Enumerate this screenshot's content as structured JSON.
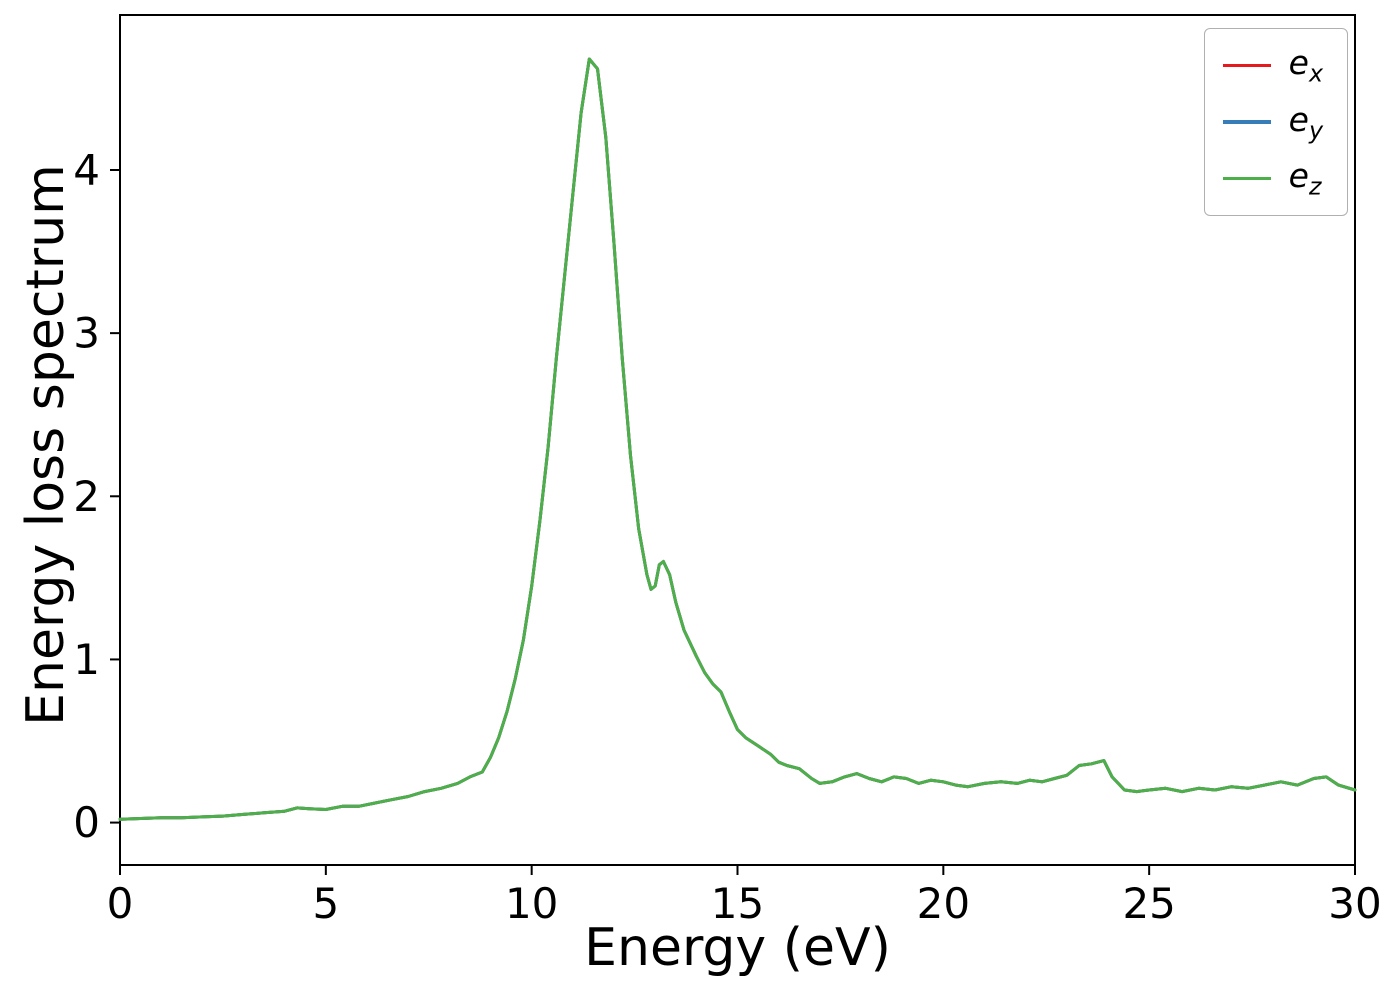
{
  "chart_data": {
    "type": "line",
    "title": "",
    "xlabel": "Energy (eV)",
    "ylabel": "Energy loss spectrum",
    "xlim": [
      0,
      30
    ],
    "ylim": [
      -0.26,
      4.95
    ],
    "xticks": [
      0,
      5,
      10,
      15,
      20,
      25,
      30
    ],
    "yticks": [
      0,
      1,
      2,
      3,
      4
    ],
    "grid": false,
    "legend_position": "upper right",
    "series_note": "The three curves e_x, e_y, e_z are identical and overlap exactly; only e_z (green, drawn last) is visible.",
    "series": [
      {
        "name": "e_x",
        "color": "#e41a1c"
      },
      {
        "name": "e_y",
        "color": "#377eb8"
      },
      {
        "name": "e_z",
        "color": "#4daf4a"
      }
    ],
    "x": [
      0,
      0.5,
      1,
      1.5,
      2,
      2.5,
      3,
      3.5,
      4,
      4.3,
      4.6,
      5,
      5.4,
      5.8,
      6.2,
      6.6,
      7,
      7.4,
      7.8,
      8.2,
      8.5,
      8.8,
      9,
      9.2,
      9.4,
      9.6,
      9.8,
      10,
      10.2,
      10.4,
      10.6,
      10.8,
      11,
      11.2,
      11.4,
      11.6,
      11.8,
      12,
      12.2,
      12.4,
      12.6,
      12.8,
      12.9,
      13,
      13.1,
      13.2,
      13.35,
      13.5,
      13.7,
      14,
      14.2,
      14.4,
      14.6,
      14.8,
      15,
      15.2,
      15.5,
      15.8,
      16,
      16.2,
      16.5,
      16.8,
      17,
      17.3,
      17.6,
      17.9,
      18.2,
      18.5,
      18.8,
      19.1,
      19.4,
      19.7,
      20,
      20.3,
      20.6,
      21,
      21.4,
      21.8,
      22.1,
      22.4,
      22.7,
      23,
      23.3,
      23.6,
      23.9,
      24.1,
      24.4,
      24.7,
      25,
      25.4,
      25.8,
      26.2,
      26.6,
      27,
      27.4,
      27.8,
      28.2,
      28.6,
      29,
      29.3,
      29.6,
      30
    ],
    "y": [
      0.02,
      0.025,
      0.03,
      0.03,
      0.035,
      0.04,
      0.05,
      0.06,
      0.07,
      0.09,
      0.085,
      0.08,
      0.1,
      0.1,
      0.12,
      0.14,
      0.16,
      0.19,
      0.21,
      0.24,
      0.28,
      0.31,
      0.4,
      0.52,
      0.68,
      0.88,
      1.12,
      1.45,
      1.85,
      2.3,
      2.85,
      3.35,
      3.85,
      4.35,
      4.68,
      4.62,
      4.2,
      3.55,
      2.85,
      2.25,
      1.8,
      1.52,
      1.43,
      1.45,
      1.58,
      1.6,
      1.52,
      1.35,
      1.18,
      1.02,
      0.92,
      0.85,
      0.8,
      0.68,
      0.57,
      0.52,
      0.47,
      0.42,
      0.37,
      0.35,
      0.33,
      0.27,
      0.24,
      0.25,
      0.28,
      0.3,
      0.27,
      0.25,
      0.28,
      0.27,
      0.24,
      0.26,
      0.25,
      0.23,
      0.22,
      0.24,
      0.25,
      0.24,
      0.26,
      0.25,
      0.27,
      0.29,
      0.35,
      0.36,
      0.38,
      0.28,
      0.2,
      0.19,
      0.2,
      0.21,
      0.19,
      0.21,
      0.2,
      0.22,
      0.21,
      0.23,
      0.25,
      0.23,
      0.27,
      0.28,
      0.23,
      0.2
    ]
  }
}
